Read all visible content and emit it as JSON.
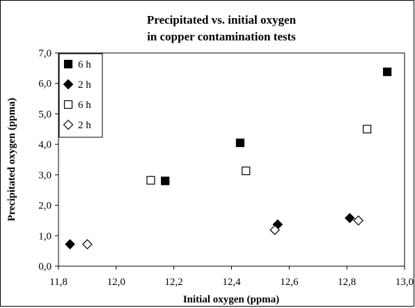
{
  "chart_data": {
    "type": "scatter",
    "title": [
      "Precipitated vs. initial oxygen",
      "in copper contamination tests"
    ],
    "xlabel": "Initial oxygen (ppma)",
    "ylabel": "Precipitated oxygen (ppma)",
    "xlim": [
      11.8,
      13.0
    ],
    "ylim": [
      0.0,
      7.0
    ],
    "xticks": [
      "11,8",
      "12,0",
      "12,2",
      "12,4",
      "12,6",
      "12,8",
      "13,0"
    ],
    "yticks": [
      "0,0",
      "1,0",
      "2,0",
      "3,0",
      "4,0",
      "5,0",
      "6,0",
      "7,0"
    ],
    "grid": false,
    "legend_position": "top-left",
    "series": [
      {
        "name": "6 h",
        "marker": "square",
        "filled": true,
        "color": "#000000",
        "points": [
          [
            12.17,
            2.8
          ],
          [
            12.43,
            4.05
          ],
          [
            12.94,
            6.38
          ]
        ]
      },
      {
        "name": "2 h",
        "marker": "diamond",
        "filled": true,
        "color": "#000000",
        "points": [
          [
            11.84,
            0.72
          ],
          [
            12.56,
            1.37
          ],
          [
            12.81,
            1.58
          ]
        ]
      },
      {
        "name": "6 h",
        "marker": "square",
        "filled": false,
        "color": "#000000",
        "points": [
          [
            12.12,
            2.82
          ],
          [
            12.45,
            3.13
          ],
          [
            12.87,
            4.5
          ]
        ]
      },
      {
        "name": "2 h",
        "marker": "diamond",
        "filled": false,
        "color": "#000000",
        "points": [
          [
            11.9,
            0.72
          ],
          [
            12.55,
            1.19
          ],
          [
            12.84,
            1.5
          ]
        ]
      }
    ]
  }
}
